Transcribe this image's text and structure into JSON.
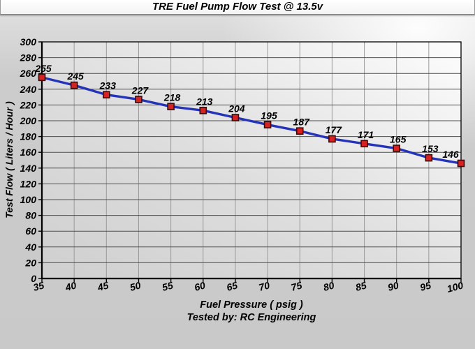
{
  "chart_data": {
    "type": "line",
    "title": "TRE Fuel Pump Flow Test @ 13.5v",
    "x": [
      35,
      40,
      45,
      50,
      55,
      60,
      65,
      70,
      75,
      80,
      85,
      90,
      95,
      100
    ],
    "values": [
      255,
      245,
      233,
      227,
      218,
      213,
      204,
      195,
      187,
      177,
      171,
      165,
      153,
      146
    ],
    "xlabel": "Fuel Pressure ( psig )",
    "ylabel": "Test Flow ( Liters / Hour )",
    "footer": "Tested by: RC Engineering",
    "xlim": [
      35,
      100
    ],
    "ylim": [
      0,
      300
    ],
    "x_tick_step": 5,
    "y_tick_step": 20,
    "grid": true,
    "legend": "none",
    "data_labels": true
  },
  "colors": {
    "line": "#2433b8",
    "marker_fill": "#d92121",
    "marker_border": "#3a0a0a",
    "h_grid": "#4f4f4f",
    "v_grid": "#9a9a9a",
    "axis": "#000000"
  }
}
